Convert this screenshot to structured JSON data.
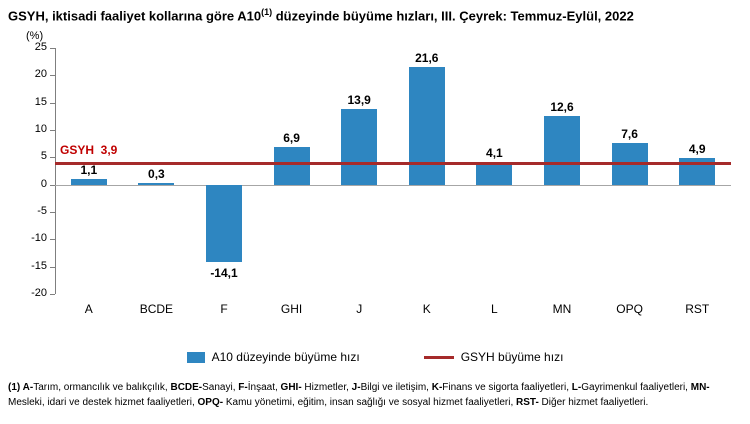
{
  "title": {
    "prefix": "GSYH, iktisadi faaliyet kollarına göre A10",
    "sup": "(1)",
    "suffix": " düzeyinde büyüme hızları, III. Çeyrek: Temmuz-Eylül, 2022"
  },
  "percent_label": "(%)",
  "chart_data": {
    "type": "bar",
    "title": "GSYH, iktisadi faaliyet kollarına göre A10(1) düzeyinde büyüme hızları, III. Çeyrek: Temmuz-Eylül, 2022",
    "categories": [
      "A",
      "BCDE",
      "F",
      "GHI",
      "J",
      "K",
      "L",
      "MN",
      "OPQ",
      "RST"
    ],
    "values": [
      1.1,
      0.3,
      -14.1,
      6.9,
      13.9,
      21.6,
      4.1,
      12.6,
      7.6,
      4.9
    ],
    "value_labels": [
      "1,1",
      "0,3",
      "-14,1",
      "6,9",
      "13,9",
      "21,6",
      "4,1",
      "12,6",
      "7,6",
      "4,9"
    ],
    "ylim": [
      -20,
      25
    ],
    "yticks": [
      25,
      20,
      15,
      10,
      5,
      0,
      -5,
      -10,
      -15,
      -20
    ],
    "ytick_labels": [
      "25",
      "20",
      "15",
      "10",
      "5",
      "0",
      "-5",
      "-10",
      "-15",
      "-20"
    ],
    "ylabel": "(%)",
    "xlabel": "",
    "grid": false,
    "legend_position": "bottom",
    "legend": [
      "A10 düzeyinde büyüme hızı",
      "GSYH büyüme hızı"
    ],
    "bar_color": "#2e86c1",
    "reference_line": {
      "value": 3.9,
      "label": "GSYH  3,9",
      "color": "#a52a2a",
      "label_color": "#c00000"
    }
  },
  "legend": {
    "bar_label": "A10 düzeyinde büyüme hızı",
    "line_label": "GSYH büyüme hızı"
  },
  "footnote": {
    "segments": [
      {
        "t": "(1) ",
        "b": true
      },
      {
        "t": "A-",
        "b": true
      },
      {
        "t": "Tarım, ormancılık ve balıkçılık, ",
        "b": false
      },
      {
        "t": "BCDE-",
        "b": true
      },
      {
        "t": "Sanayi, ",
        "b": false
      },
      {
        "t": "F-",
        "b": true
      },
      {
        "t": "İnşaat, ",
        "b": false
      },
      {
        "t": "GHI-",
        "b": true
      },
      {
        "t": " Hizmetler, ",
        "b": false
      },
      {
        "t": "J-",
        "b": true
      },
      {
        "t": "Bilgi ve iletişim, ",
        "b": false
      },
      {
        "t": "K-",
        "b": true
      },
      {
        "t": "Finans ve sigorta faaliyetleri, ",
        "b": false
      },
      {
        "t": "L-",
        "b": true
      },
      {
        "t": "Gayrimenkul faaliyetleri, ",
        "b": false
      },
      {
        "t": "MN-",
        "b": true
      },
      {
        "t": " Mesleki, idari ve destek hizmet faaliyetleri, ",
        "b": false
      },
      {
        "t": "OPQ-",
        "b": true
      },
      {
        "t": " Kamu yönetimi, eğitim, insan sağlığı ve sosyal hizmet faaliyetleri, ",
        "b": false
      },
      {
        "t": "RST-",
        "b": true
      },
      {
        "t": " Diğer hizmet faaliyetleri.",
        "b": false
      }
    ]
  }
}
